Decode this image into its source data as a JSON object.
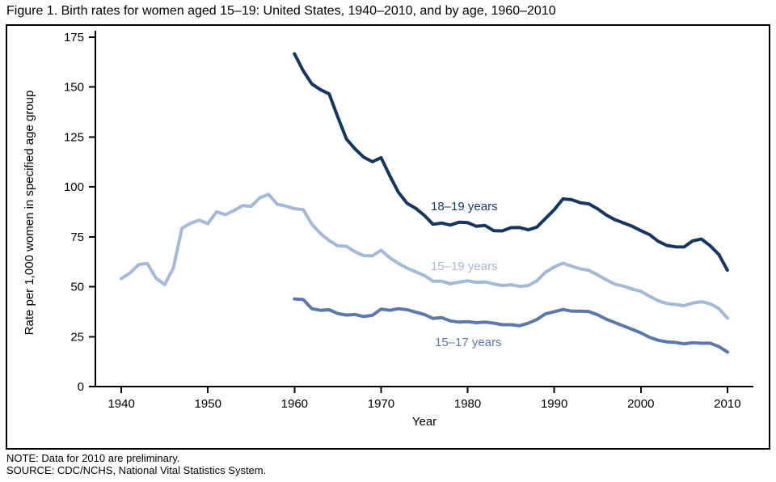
{
  "title": "Figure 1. Birth rates for women aged 15–19: United States, 1940–2010, and by age, 1960–2010",
  "footer": {
    "note": "NOTE: Data for 2010 are preliminary.",
    "source": "SOURCE: CDC/NCHS, National Vital Statistics System."
  },
  "chart_data": {
    "type": "line",
    "title": "Figure 1. Birth rates for women aged 15–19: United States, 1940–2010, and by age, 1960–2010",
    "xlabel": "Year",
    "ylabel": "Rate per 1,000 women in specified age group",
    "xlim": [
      1937,
      2013
    ],
    "ylim": [
      0,
      175
    ],
    "xticks": [
      1940,
      1950,
      1960,
      1970,
      1980,
      1990,
      2000,
      2010
    ],
    "yticks": [
      0,
      25,
      50,
      75,
      100,
      125,
      150,
      175
    ],
    "grid": false,
    "legend": "inline-labels",
    "axis_color": "#000000",
    "series": [
      {
        "name": "18–19 years",
        "color": "#17365d",
        "x_start": 1960,
        "x_step": 1,
        "values": [
          166.7,
          158.2,
          151.6,
          148.7,
          146.6,
          135.0,
          124.0,
          119.0,
          114.9,
          112.6,
          114.7,
          105.6,
          97.3,
          91.8,
          89.3,
          85.7,
          81.3,
          81.9,
          80.9,
          82.3,
          82.1,
          80.3,
          80.7,
          78.1,
          78.0,
          79.6,
          79.7,
          78.5,
          79.9,
          84.2,
          88.6,
          94.0,
          93.6,
          92.1,
          91.5,
          89.1,
          86.0,
          83.6,
          82.0,
          80.3,
          78.1,
          76.1,
          72.8,
          70.7,
          70.0,
          69.9,
          73.0,
          73.9,
          70.6,
          66.2,
          58.3
        ]
      },
      {
        "name": "15–19 years",
        "color": "#a5b8d6",
        "x_start": 1940,
        "x_step": 1,
        "values": [
          54.1,
          56.9,
          61.1,
          61.7,
          54.3,
          51.1,
          59.3,
          79.3,
          81.8,
          83.4,
          81.6,
          87.6,
          86.1,
          88.2,
          90.6,
          90.3,
          94.6,
          96.3,
          91.4,
          90.4,
          89.1,
          88.6,
          81.4,
          76.7,
          73.1,
          70.5,
          70.3,
          67.5,
          65.6,
          65.5,
          68.3,
          64.5,
          61.7,
          59.3,
          57.5,
          55.6,
          52.8,
          52.8,
          51.5,
          52.3,
          53.0,
          52.2,
          52.4,
          51.4,
          50.6,
          51.0,
          50.2,
          50.6,
          53.0,
          57.3,
          59.9,
          61.8,
          60.3,
          59.0,
          58.2,
          56.0,
          53.5,
          51.3,
          50.3,
          48.8,
          47.7,
          45.3,
          43.0,
          41.6,
          41.1,
          40.5,
          41.9,
          42.5,
          41.5,
          39.1,
          34.3
        ]
      },
      {
        "name": "15–17 years",
        "color": "#5d78a8",
        "x_start": 1960,
        "x_step": 1,
        "values": [
          43.9,
          43.6,
          39.0,
          38.2,
          38.5,
          36.6,
          35.8,
          36.1,
          35.1,
          35.7,
          38.8,
          38.2,
          39.0,
          38.5,
          37.3,
          36.1,
          34.1,
          34.5,
          32.9,
          32.3,
          32.5,
          32.0,
          32.3,
          31.8,
          31.0,
          31.0,
          30.5,
          31.7,
          33.6,
          36.4,
          37.5,
          38.6,
          37.8,
          37.8,
          37.6,
          36.0,
          33.8,
          32.1,
          30.4,
          28.7,
          26.9,
          24.7,
          23.2,
          22.4,
          22.1,
          21.4,
          22.0,
          21.7,
          21.7,
          20.1,
          17.3
        ]
      }
    ]
  }
}
